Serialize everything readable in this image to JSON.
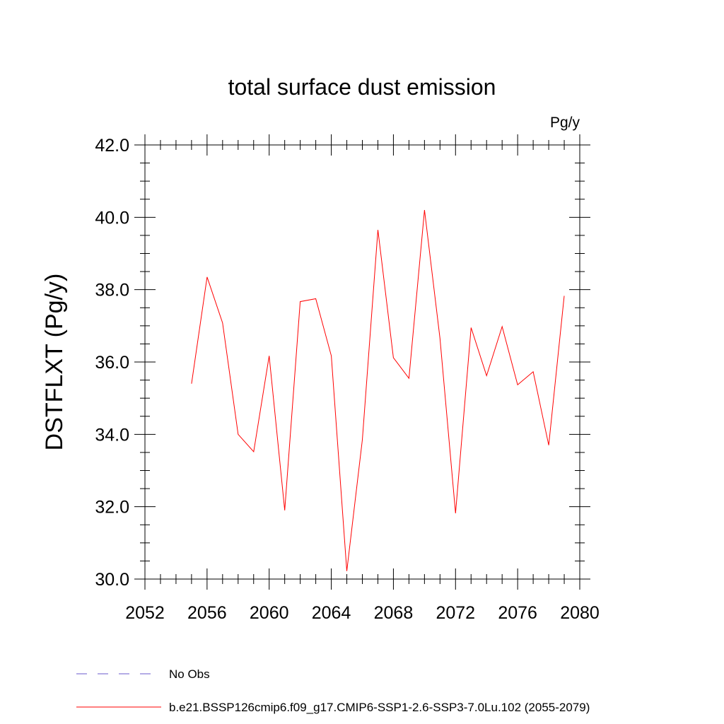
{
  "chart_data": {
    "type": "line",
    "title": "total surface dust emission",
    "units": "Pg/y",
    "ylabel": "DSTFLXT  (Pg/y)",
    "xlabel": "",
    "xlim": [
      2052,
      2080
    ],
    "ylim": [
      30.0,
      42.0
    ],
    "x_ticks": [
      "2052",
      "2056",
      "2060",
      "2064",
      "2068",
      "2072",
      "2076",
      "2080"
    ],
    "y_ticks": [
      "30.0",
      "32.0",
      "34.0",
      "36.0",
      "38.0",
      "40.0",
      "42.0"
    ],
    "grid": false,
    "series": [
      {
        "name": "b.e21.BSSP126cmip6.f09_g17.CMIP6-SSP1-2.6-SSP3-7.0Lu.102 (2055-2079)",
        "color": "#ff0000",
        "x": [
          2055,
          2056,
          2057,
          2058,
          2059,
          2060,
          2061,
          2062,
          2063,
          2064,
          2065,
          2066,
          2067,
          2068,
          2069,
          2070,
          2071,
          2072,
          2073,
          2074,
          2075,
          2076,
          2077,
          2078,
          2079
        ],
        "values": [
          35.4,
          38.35,
          37.08,
          34.0,
          33.52,
          36.17,
          31.9,
          37.67,
          37.75,
          36.17,
          30.22,
          33.85,
          39.65,
          36.12,
          35.55,
          40.2,
          36.65,
          31.82,
          36.95,
          35.62,
          36.98,
          35.37,
          35.73,
          33.7,
          37.83
        ]
      }
    ],
    "legend": [
      {
        "label": "No Obs",
        "color": "#6a5acd",
        "style": "dashed"
      },
      {
        "label": "b.e21.BSSP126cmip6.f09_g17.CMIP6-SSP1-2.6-SSP3-7.0Lu.102 (2055-2079)",
        "color": "#ff0000",
        "style": "solid"
      }
    ]
  }
}
